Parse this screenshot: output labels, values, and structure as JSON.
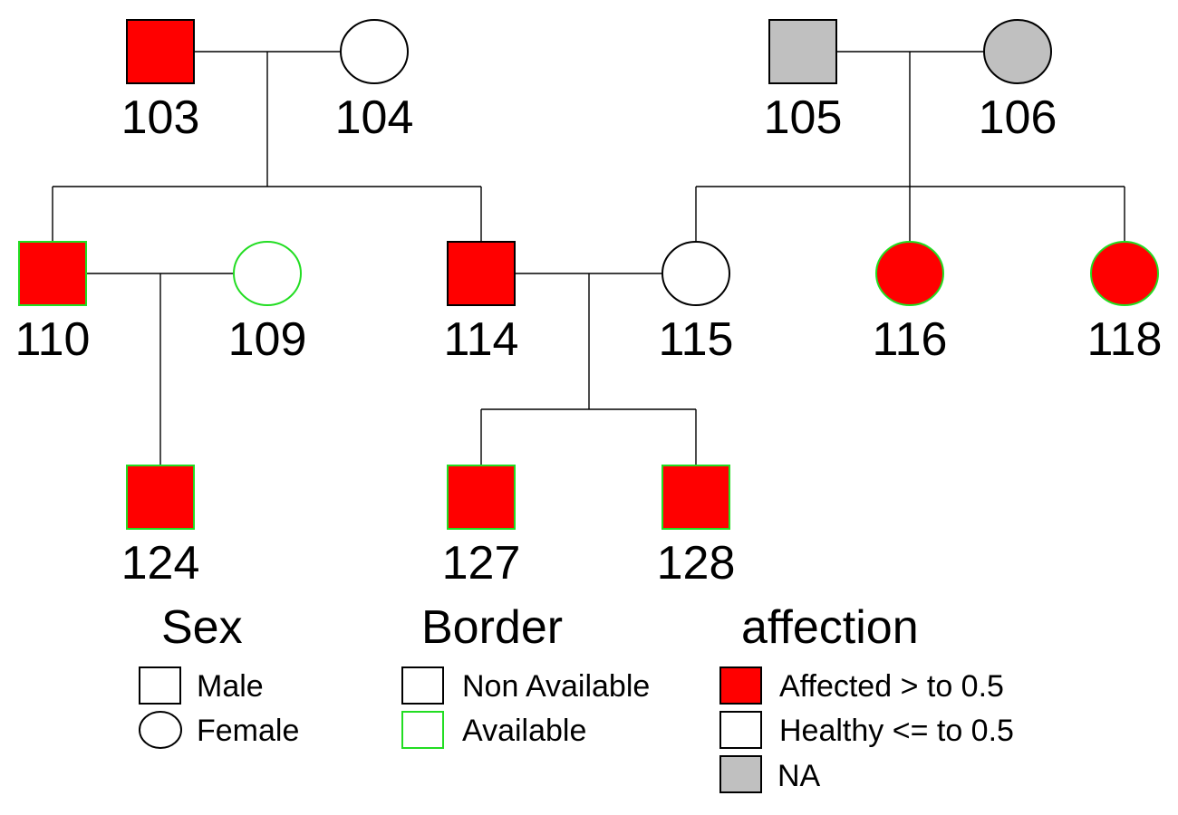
{
  "colors": {
    "affected": "#ff0000",
    "healthy": "#ffffff",
    "na": "#c0c0c0",
    "border_available": "#22dd22",
    "border_unavailable": "#000000"
  },
  "individuals": [
    {
      "id": "103",
      "sex": "male",
      "affection": "affected",
      "available": false
    },
    {
      "id": "104",
      "sex": "female",
      "affection": "healthy",
      "available": false
    },
    {
      "id": "105",
      "sex": "male",
      "affection": "na",
      "available": false
    },
    {
      "id": "106",
      "sex": "female",
      "affection": "na",
      "available": false
    },
    {
      "id": "110",
      "sex": "male",
      "affection": "affected",
      "available": true
    },
    {
      "id": "109",
      "sex": "female",
      "affection": "healthy",
      "available": true
    },
    {
      "id": "114",
      "sex": "male",
      "affection": "affected",
      "available": false
    },
    {
      "id": "115",
      "sex": "female",
      "affection": "healthy",
      "available": false
    },
    {
      "id": "116",
      "sex": "female",
      "affection": "affected",
      "available": true
    },
    {
      "id": "118",
      "sex": "female",
      "affection": "affected",
      "available": true
    },
    {
      "id": "124",
      "sex": "male",
      "affection": "affected",
      "available": true
    },
    {
      "id": "127",
      "sex": "male",
      "affection": "affected",
      "available": true
    },
    {
      "id": "128",
      "sex": "male",
      "affection": "affected",
      "available": true
    }
  ],
  "legend": {
    "sex": {
      "title": "Sex",
      "male": "Male",
      "female": "Female"
    },
    "border": {
      "title": "Border",
      "non_available": "Non Available",
      "available": "Available"
    },
    "affection": {
      "title": "affection",
      "affected": "Affected > to 0.5",
      "healthy": "Healthy <= to 0.5",
      "na": "NA"
    }
  }
}
